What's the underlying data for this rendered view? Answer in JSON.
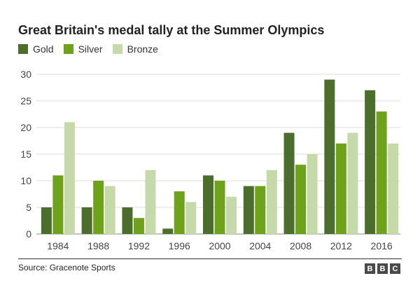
{
  "chart_data": {
    "type": "bar",
    "title": "Great Britain's medal tally at the Summer Olympics",
    "categories": [
      "1984",
      "1988",
      "1992",
      "1996",
      "2000",
      "2004",
      "2008",
      "2012",
      "2016"
    ],
    "series": [
      {
        "name": "Gold",
        "color": "#4c6e2c",
        "values": [
          5,
          5,
          5,
          1,
          11,
          9,
          19,
          29,
          27
        ]
      },
      {
        "name": "Silver",
        "color": "#6ea21b",
        "values": [
          11,
          10,
          3,
          8,
          10,
          9,
          13,
          17,
          23
        ]
      },
      {
        "name": "Bronze",
        "color": "#c6d9a9",
        "values": [
          21,
          9,
          12,
          6,
          7,
          12,
          15,
          19,
          17
        ]
      }
    ],
    "ylim": [
      0,
      30
    ],
    "yticks": [
      0,
      5,
      10,
      15,
      20,
      25,
      30
    ],
    "xlabel": "",
    "ylabel": "",
    "grid": true,
    "legend": "top-left"
  },
  "source": "Source: Gracenote Sports",
  "logo": [
    "B",
    "B",
    "C"
  ]
}
